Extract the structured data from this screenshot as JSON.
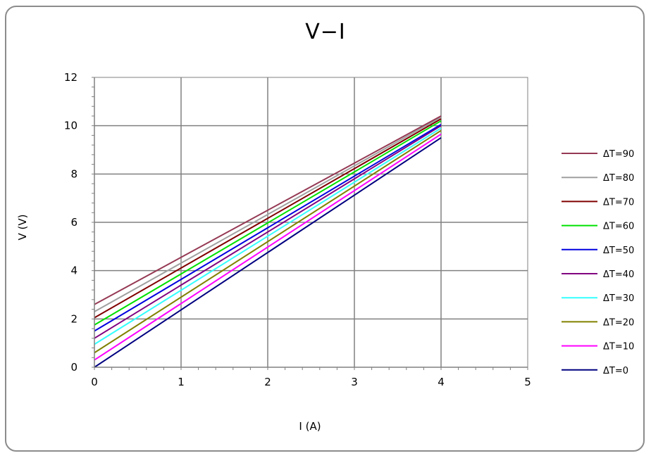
{
  "chart_data": {
    "type": "line",
    "title": "V−I",
    "xlabel": "I (A)",
    "ylabel": "V (V)",
    "xlim": [
      0,
      5
    ],
    "ylim": [
      0,
      12
    ],
    "x_ticks": [
      0,
      1,
      2,
      3,
      4,
      5
    ],
    "y_ticks": [
      0,
      2,
      4,
      6,
      8,
      10,
      12
    ],
    "grid": true,
    "legend_position": "right",
    "series": [
      {
        "name": "ΔT=90",
        "color": "#953954",
        "x": [
          0,
          4
        ],
        "y": [
          2.6,
          10.4
        ]
      },
      {
        "name": "ΔT=80",
        "color": "#a0a0a0",
        "x": [
          0,
          4
        ],
        "y": [
          2.3,
          10.35
        ]
      },
      {
        "name": "ΔT=70",
        "color": "#800000",
        "x": [
          0,
          4
        ],
        "y": [
          2.05,
          10.28
        ]
      },
      {
        "name": "ΔT=60",
        "color": "#00e000",
        "x": [
          0,
          4
        ],
        "y": [
          1.75,
          10.2
        ]
      },
      {
        "name": "ΔT=50",
        "color": "#0000e0",
        "x": [
          0,
          4
        ],
        "y": [
          1.5,
          10.05
        ]
      },
      {
        "name": "ΔT=40",
        "color": "#800080",
        "x": [
          0,
          4
        ],
        "y": [
          1.2,
          10.0
        ]
      },
      {
        "name": "ΔT=30",
        "color": "#33ffff",
        "x": [
          0,
          4
        ],
        "y": [
          0.95,
          9.9
        ]
      },
      {
        "name": "ΔT=20",
        "color": "#808000",
        "x": [
          0,
          4
        ],
        "y": [
          0.6,
          9.8
        ]
      },
      {
        "name": "ΔT=10",
        "color": "#ff00ff",
        "x": [
          0,
          4
        ],
        "y": [
          0.3,
          9.65
        ]
      },
      {
        "name": "ΔT=0",
        "color": "#000080",
        "x": [
          0,
          4
        ],
        "y": [
          0.0,
          9.5
        ]
      }
    ]
  }
}
